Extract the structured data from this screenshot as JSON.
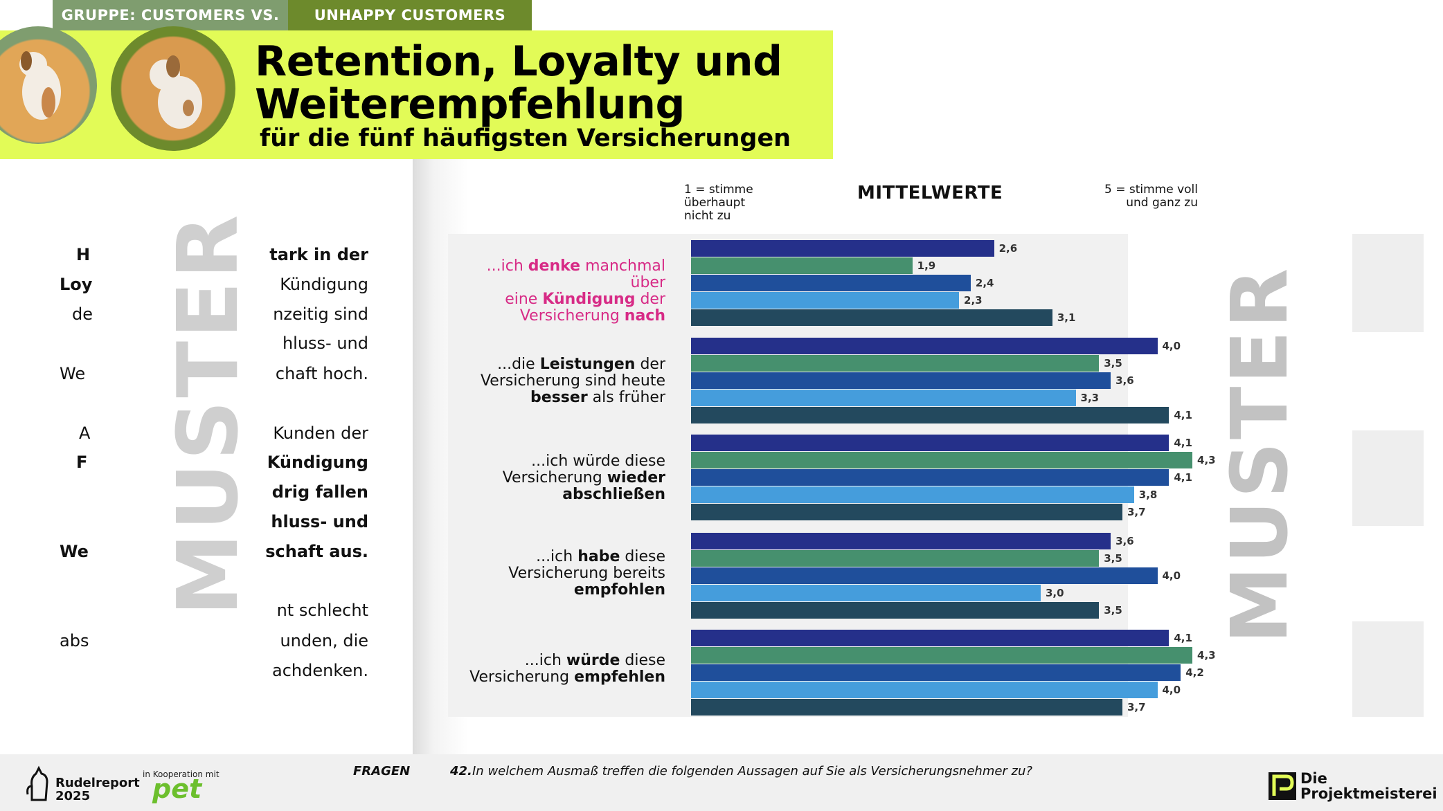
{
  "header": {
    "tab_left": "GRUPPE: CUSTOMERS VS.",
    "tab_right": "UNHAPPY CUSTOMERS",
    "title_line1": "Retention, Loyalty und",
    "title_line2": "Weiterempfehlung",
    "subtitle": "für die fünf häufigsten Versicherungen"
  },
  "left_text": {
    "lines": [
      {
        "left": "H",
        "right": "tark in der",
        "bold": true
      },
      {
        "left": "Loy",
        "right": "Kündigung",
        "bold": false,
        "left_bold": true
      },
      {
        "left": "de",
        "right": "nzeitig sind",
        "bold": false
      },
      {
        "left": "",
        "right": "hluss- und",
        "bold": false
      },
      {
        "left": "We",
        "right": "chaft hoch.",
        "bold": false
      },
      {
        "left": "A",
        "right": "Kunden der",
        "bold": false
      },
      {
        "left": "F",
        "right": "Kündigung",
        "bold": true
      },
      {
        "left": "",
        "right": "drig fallen",
        "bold": true
      },
      {
        "left": "",
        "right": "hluss- und",
        "bold": true
      },
      {
        "left": "We",
        "right": "schaft aus.",
        "bold": true
      },
      {
        "left": "",
        "right": "nt schlecht",
        "bold": false
      },
      {
        "left": "abs",
        "right": "unden, die",
        "bold": false
      },
      {
        "left": "",
        "right": "achdenken.",
        "bold": false
      }
    ],
    "watermark": "MUSTER"
  },
  "watermark_right": "MUSTER",
  "colors": {
    "tab_left": "#7f9d6f",
    "tab_right": "#6d8a2c",
    "banner": "#e2fb57",
    "series": [
      "#25308a",
      "#46906e",
      "#1f4f9b",
      "#459ddc",
      "#23495e"
    ],
    "highlight": "#d72b86"
  },
  "chart_data": {
    "type": "bar",
    "orientation": "horizontal",
    "title": "MITTELWERTE",
    "axis_min_label": "1 = stimme überhaupt nicht zu",
    "axis_max_label": "5 = stimme voll und ganz zu",
    "xlim": [
      1,
      5
    ],
    "categories": [
      "...ich denke manchmal über eine Kündigung der Versicherung nach",
      "...die Leistungen der Versicherung sind heute besser als früher",
      "...ich würde diese Versicherung wieder abschließen",
      "...ich habe diese Versicherung bereits empfohlen",
      "...ich würde diese Versicherung empfehlen"
    ],
    "category_labels": [
      [
        {
          "t": "...ich ",
          "b": false
        },
        {
          "t": "denke",
          "b": true
        },
        {
          "t": " manchmal über",
          "b": false
        },
        {
          "t": "\n",
          "b": false
        },
        {
          "t": "eine ",
          "b": false
        },
        {
          "t": "Kündigung",
          "b": true
        },
        {
          "t": " der",
          "b": false
        },
        {
          "t": "\n",
          "b": false
        },
        {
          "t": "Versicherung ",
          "b": false
        },
        {
          "t": "nach",
          "b": true
        }
      ],
      [
        {
          "t": "...die ",
          "b": false
        },
        {
          "t": "Leistungen",
          "b": true
        },
        {
          "t": " der",
          "b": false
        },
        {
          "t": "\n",
          "b": false
        },
        {
          "t": "Versicherung sind heute",
          "b": false
        },
        {
          "t": "\n",
          "b": false
        },
        {
          "t": "besser",
          "b": true
        },
        {
          "t": " als früher",
          "b": false
        }
      ],
      [
        {
          "t": "...ich würde diese",
          "b": false
        },
        {
          "t": "\n",
          "b": false
        },
        {
          "t": "Versicherung ",
          "b": false
        },
        {
          "t": "wieder",
          "b": true
        },
        {
          "t": "\n",
          "b": false
        },
        {
          "t": "abschließen",
          "b": true
        }
      ],
      [
        {
          "t": "...ich ",
          "b": false
        },
        {
          "t": "habe",
          "b": true
        },
        {
          "t": " diese",
          "b": false
        },
        {
          "t": "\n",
          "b": false
        },
        {
          "t": "Versicherung bereits",
          "b": false
        },
        {
          "t": "\n",
          "b": false
        },
        {
          "t": "empfohlen",
          "b": true
        }
      ],
      [
        {
          "t": "...ich ",
          "b": false
        },
        {
          "t": "würde",
          "b": true
        },
        {
          "t": " diese",
          "b": false
        },
        {
          "t": "\n",
          "b": false
        },
        {
          "t": "Versicherung ",
          "b": false
        },
        {
          "t": "empfehlen",
          "b": true
        }
      ]
    ],
    "series": [
      {
        "values": [
          2.6,
          4.0,
          4.1,
          3.6,
          4.1
        ],
        "labels": [
          "2,6",
          "4,0",
          "4,1",
          "3,6",
          "4,1"
        ]
      },
      {
        "values": [
          1.9,
          3.5,
          4.3,
          3.5,
          4.3
        ],
        "labels": [
          "1,9",
          "3,5",
          "4,3",
          "3,5",
          "4,3"
        ]
      },
      {
        "values": [
          2.4,
          3.6,
          4.1,
          4.0,
          4.2
        ],
        "labels": [
          "2,4",
          "3,6",
          "4,1",
          "4,0",
          "4,2"
        ]
      },
      {
        "values": [
          2.3,
          3.3,
          3.8,
          3.0,
          4.0
        ],
        "labels": [
          "2,3",
          "3,3",
          "3,8",
          "3,0",
          "4,0"
        ]
      },
      {
        "values": [
          3.1,
          4.1,
          3.7,
          3.5,
          3.7
        ],
        "labels": [
          "3,1",
          "4,1",
          "3,7",
          "3,5",
          "3,7"
        ]
      }
    ]
  },
  "footer": {
    "brand_line1": "Rudelreport",
    "brand_line2": "2025",
    "coop_label": "in Kooperation mit",
    "coop_brand": "pet",
    "fragen_label": "FRAGEN",
    "question_number": "42.",
    "question_text": "In welchem Ausmaß treffen die folgenden Aussagen auf Sie als Versicherungsnehmer zu?",
    "company_line1": "Die",
    "company_line2": "Projektmeisterei"
  }
}
